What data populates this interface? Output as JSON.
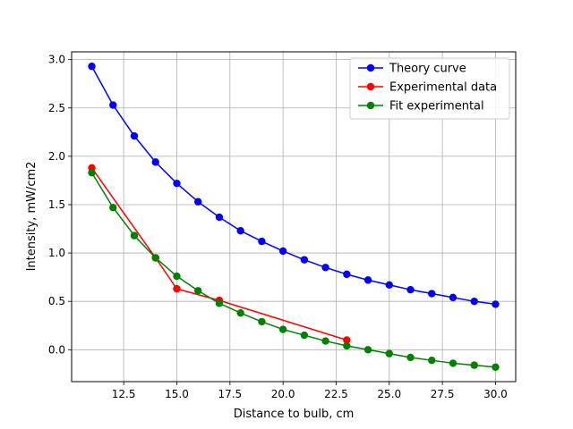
{
  "chart_data": {
    "type": "line",
    "title": "",
    "xlabel": "Distance to bulb, cm",
    "ylabel": "Intensity, mW/cm2",
    "xlim": [
      10.05,
      30.95
    ],
    "ylim": [
      -0.33,
      3.08
    ],
    "xticks": [
      12.5,
      15.0,
      17.5,
      20.0,
      22.5,
      25.0,
      27.5,
      30.0
    ],
    "xtick_labels": [
      "12.5",
      "15.0",
      "17.5",
      "20.0",
      "22.5",
      "25.0",
      "27.5",
      "30.0"
    ],
    "yticks": [
      0.0,
      0.5,
      1.0,
      1.5,
      2.0,
      2.5,
      3.0
    ],
    "ytick_labels": [
      "0.0",
      "0.5",
      "1.0",
      "1.5",
      "2.0",
      "2.5",
      "3.0"
    ],
    "grid": true,
    "legend_position": "top-right",
    "series": [
      {
        "name": "Theory curve",
        "color": "#0000ff",
        "x": [
          11,
          12,
          13,
          14,
          15,
          16,
          17,
          18,
          19,
          20,
          21,
          22,
          23,
          24,
          25,
          26,
          27,
          28,
          29,
          30
        ],
        "y": [
          2.93,
          2.53,
          2.21,
          1.94,
          1.72,
          1.53,
          1.37,
          1.23,
          1.12,
          1.02,
          0.93,
          0.85,
          0.78,
          0.72,
          0.67,
          0.62,
          0.58,
          0.54,
          0.5,
          0.47
        ]
      },
      {
        "name": "Experimental data",
        "color": "#ff0000",
        "x": [
          11,
          14,
          15,
          17,
          23
        ],
        "y": [
          1.88,
          0.95,
          0.63,
          0.51,
          0.1
        ]
      },
      {
        "name": "Fit experimental",
        "color": "#008000",
        "x": [
          11,
          12,
          13,
          14,
          15,
          16,
          17,
          18,
          19,
          20,
          21,
          22,
          23,
          24,
          25,
          26,
          27,
          28,
          29,
          30
        ],
        "y": [
          1.83,
          1.47,
          1.18,
          0.95,
          0.76,
          0.61,
          0.48,
          0.38,
          0.29,
          0.21,
          0.15,
          0.09,
          0.04,
          0.0,
          -0.04,
          -0.08,
          -0.11,
          -0.14,
          -0.16,
          -0.18
        ]
      }
    ]
  }
}
